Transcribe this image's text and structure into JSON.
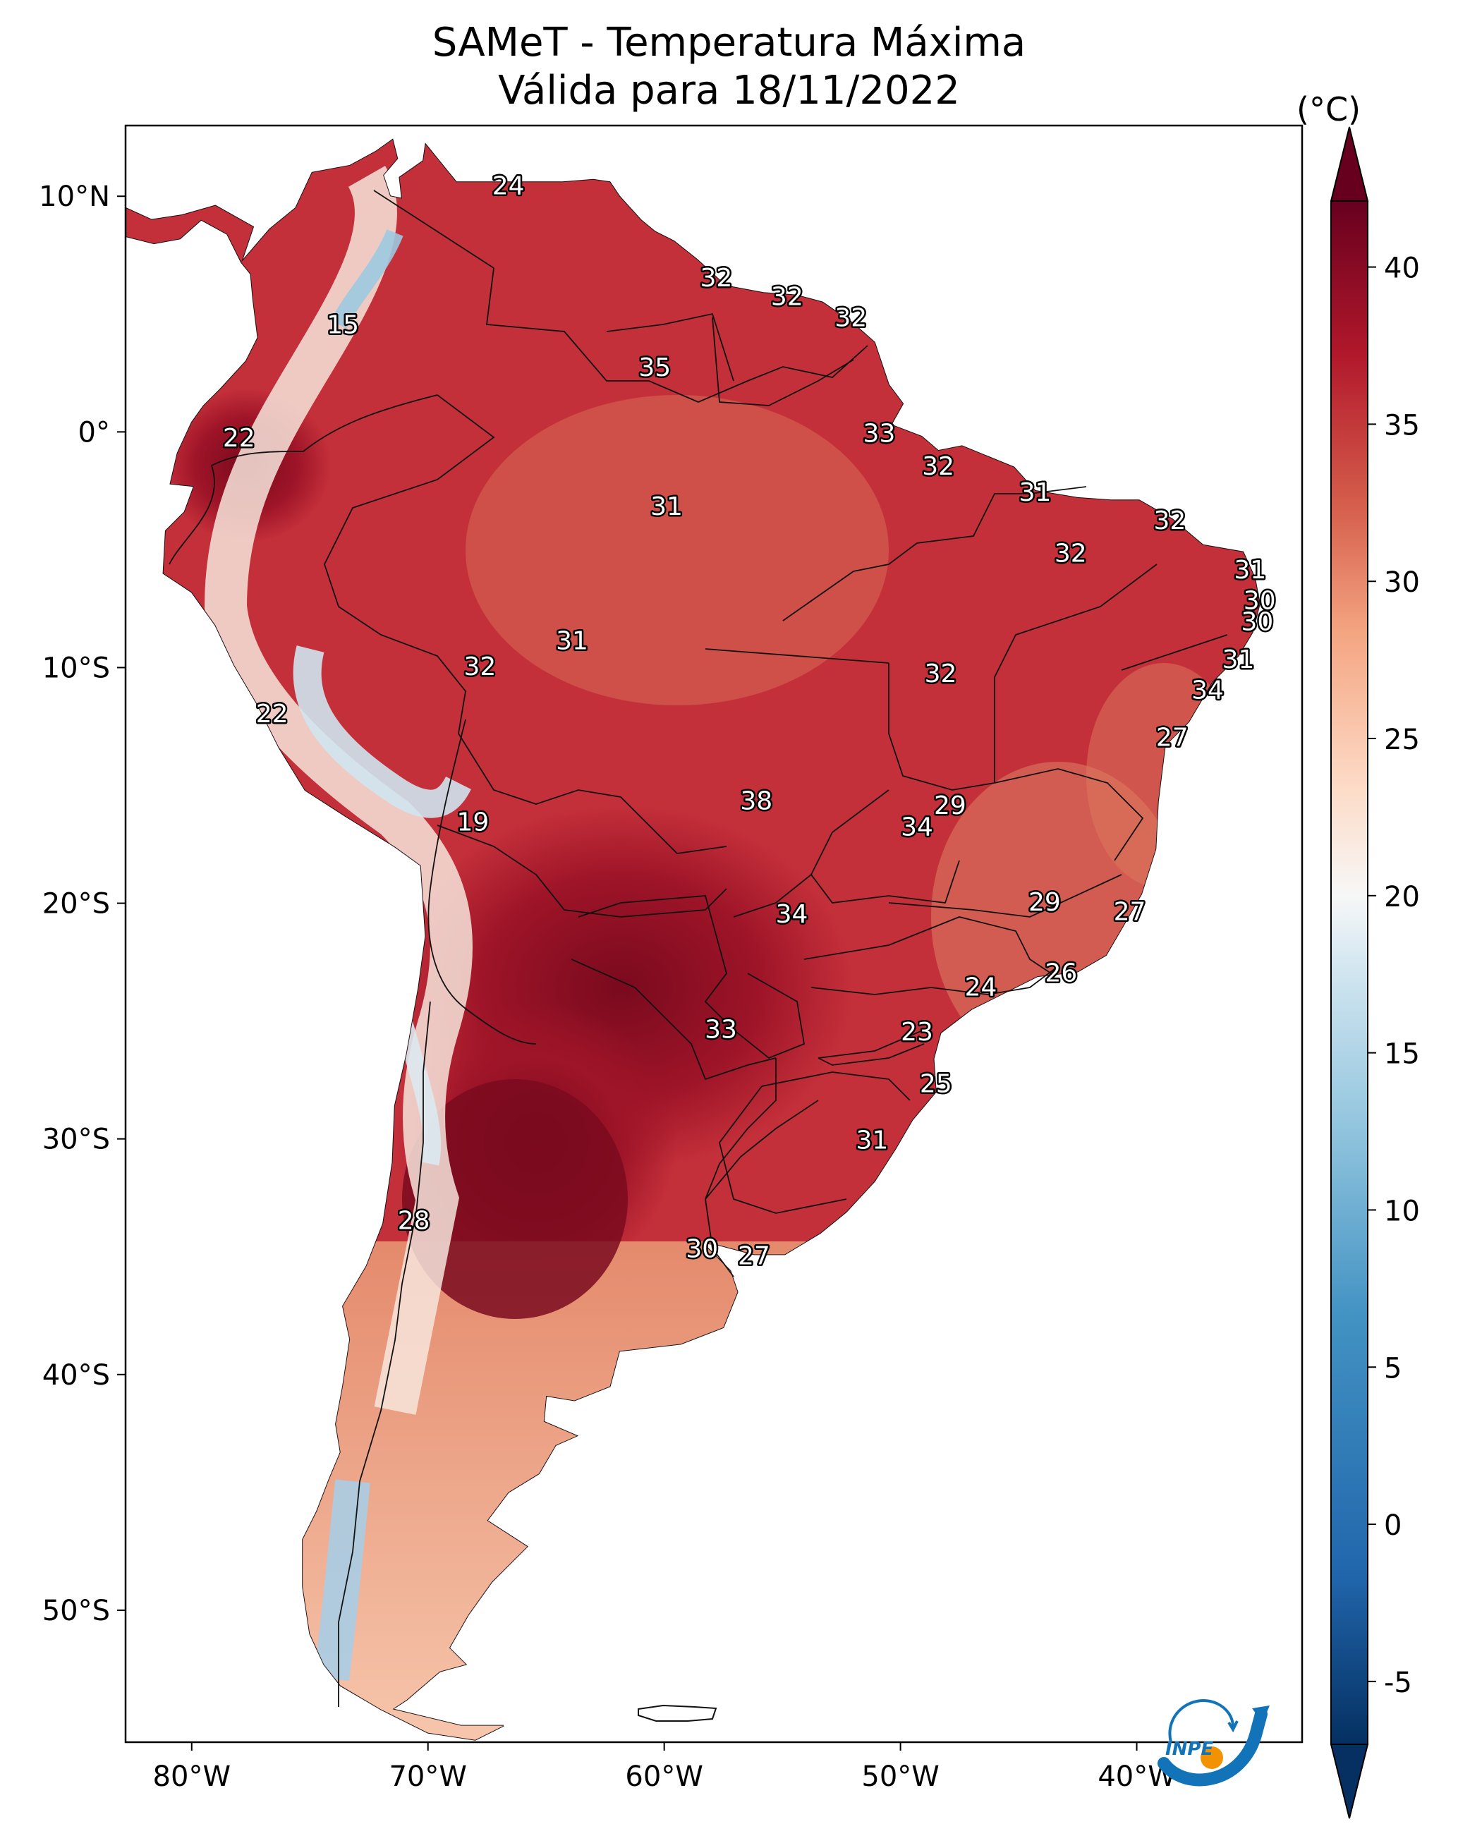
{
  "title": {
    "line1": "SAMeT - Temperatura Máxima",
    "line2": "Válida para 18/11/2022"
  },
  "colorbar": {
    "unit": "(°C)",
    "ticks": [
      "40",
      "35",
      "30",
      "25",
      "20",
      "15",
      "10",
      "5",
      "0",
      "-5"
    ],
    "range": [
      -5,
      40
    ],
    "colors": {
      "max": "#67001f",
      "high": "#b2182b",
      "warm": "#d6604d",
      "mild": "#f4a582",
      "pale": "#fddbc7",
      "neutral": "#f7f7f7",
      "cool": "#d1e5f0",
      "cold": "#92c5de",
      "colder": "#4393c3",
      "coldest": "#053061"
    }
  },
  "axes": {
    "lon_labels": [
      "80°W",
      "70°W",
      "60°W",
      "50°W",
      "40°W"
    ],
    "lat_labels": [
      "10°N",
      "0°",
      "10°S",
      "20°S",
      "30°S",
      "40°S",
      "50°S"
    ]
  },
  "stations": [
    {
      "label": "24",
      "lon": -66.6,
      "lat": 10.5
    },
    {
      "label": "15",
      "lon": -73.6,
      "lat": 4.6
    },
    {
      "label": "32",
      "lon": -57.8,
      "lat": 6.6
    },
    {
      "label": "32",
      "lon": -54.8,
      "lat": 5.8
    },
    {
      "label": "32",
      "lon": -52.1,
      "lat": 4.9
    },
    {
      "label": "35",
      "lon": -60.4,
      "lat": 2.8
    },
    {
      "label": "22",
      "lon": -78.0,
      "lat": -0.2
    },
    {
      "label": "33",
      "lon": -50.9,
      "lat": 0.0
    },
    {
      "label": "32",
      "lon": -48.4,
      "lat": -1.4
    },
    {
      "label": "31",
      "lon": -44.3,
      "lat": -2.5
    },
    {
      "label": "31",
      "lon": -59.9,
      "lat": -3.1
    },
    {
      "label": "32",
      "lon": -38.6,
      "lat": -3.7
    },
    {
      "label": "32",
      "lon": -42.8,
      "lat": -5.1
    },
    {
      "label": "31",
      "lon": -35.2,
      "lat": -5.8
    },
    {
      "label": "30",
      "lon": -34.8,
      "lat": -7.1
    },
    {
      "label": "30",
      "lon": -34.9,
      "lat": -8.0
    },
    {
      "label": "31",
      "lon": -35.7,
      "lat": -9.6
    },
    {
      "label": "31",
      "lon": -63.9,
      "lat": -8.8
    },
    {
      "label": "32",
      "lon": -67.8,
      "lat": -9.9
    },
    {
      "label": "32",
      "lon": -48.3,
      "lat": -10.2
    },
    {
      "label": "34",
      "lon": -37.0,
      "lat": -10.9
    },
    {
      "label": "22",
      "lon": -76.6,
      "lat": -11.9
    },
    {
      "label": "27",
      "lon": -38.5,
      "lat": -12.9
    },
    {
      "label": "38",
      "lon": -56.1,
      "lat": -15.6
    },
    {
      "label": "29",
      "lon": -47.9,
      "lat": -15.8
    },
    {
      "label": "34",
      "lon": -49.3,
      "lat": -16.7
    },
    {
      "label": "19",
      "lon": -68.1,
      "lat": -16.5
    },
    {
      "label": "29",
      "lon": -43.9,
      "lat": -19.9
    },
    {
      "label": "27",
      "lon": -40.3,
      "lat": -20.3
    },
    {
      "label": "34",
      "lon": -54.6,
      "lat": -20.4
    },
    {
      "label": "26",
      "lon": -43.2,
      "lat": -22.9
    },
    {
      "label": "24",
      "lon": -46.6,
      "lat": -23.5
    },
    {
      "label": "33",
      "lon": -57.6,
      "lat": -25.3
    },
    {
      "label": "23",
      "lon": -49.3,
      "lat": -25.4
    },
    {
      "label": "25",
      "lon": -48.5,
      "lat": -27.6
    },
    {
      "label": "31",
      "lon": -51.2,
      "lat": -30.0
    },
    {
      "label": "28",
      "lon": -70.6,
      "lat": -33.4
    },
    {
      "label": "30",
      "lon": -58.4,
      "lat": -34.6
    },
    {
      "label": "27",
      "lon": -56.2,
      "lat": -34.9
    }
  ],
  "logo": {
    "text": "INPE",
    "colors": {
      "blue": "#1273b9",
      "orange": "#f39200"
    }
  }
}
